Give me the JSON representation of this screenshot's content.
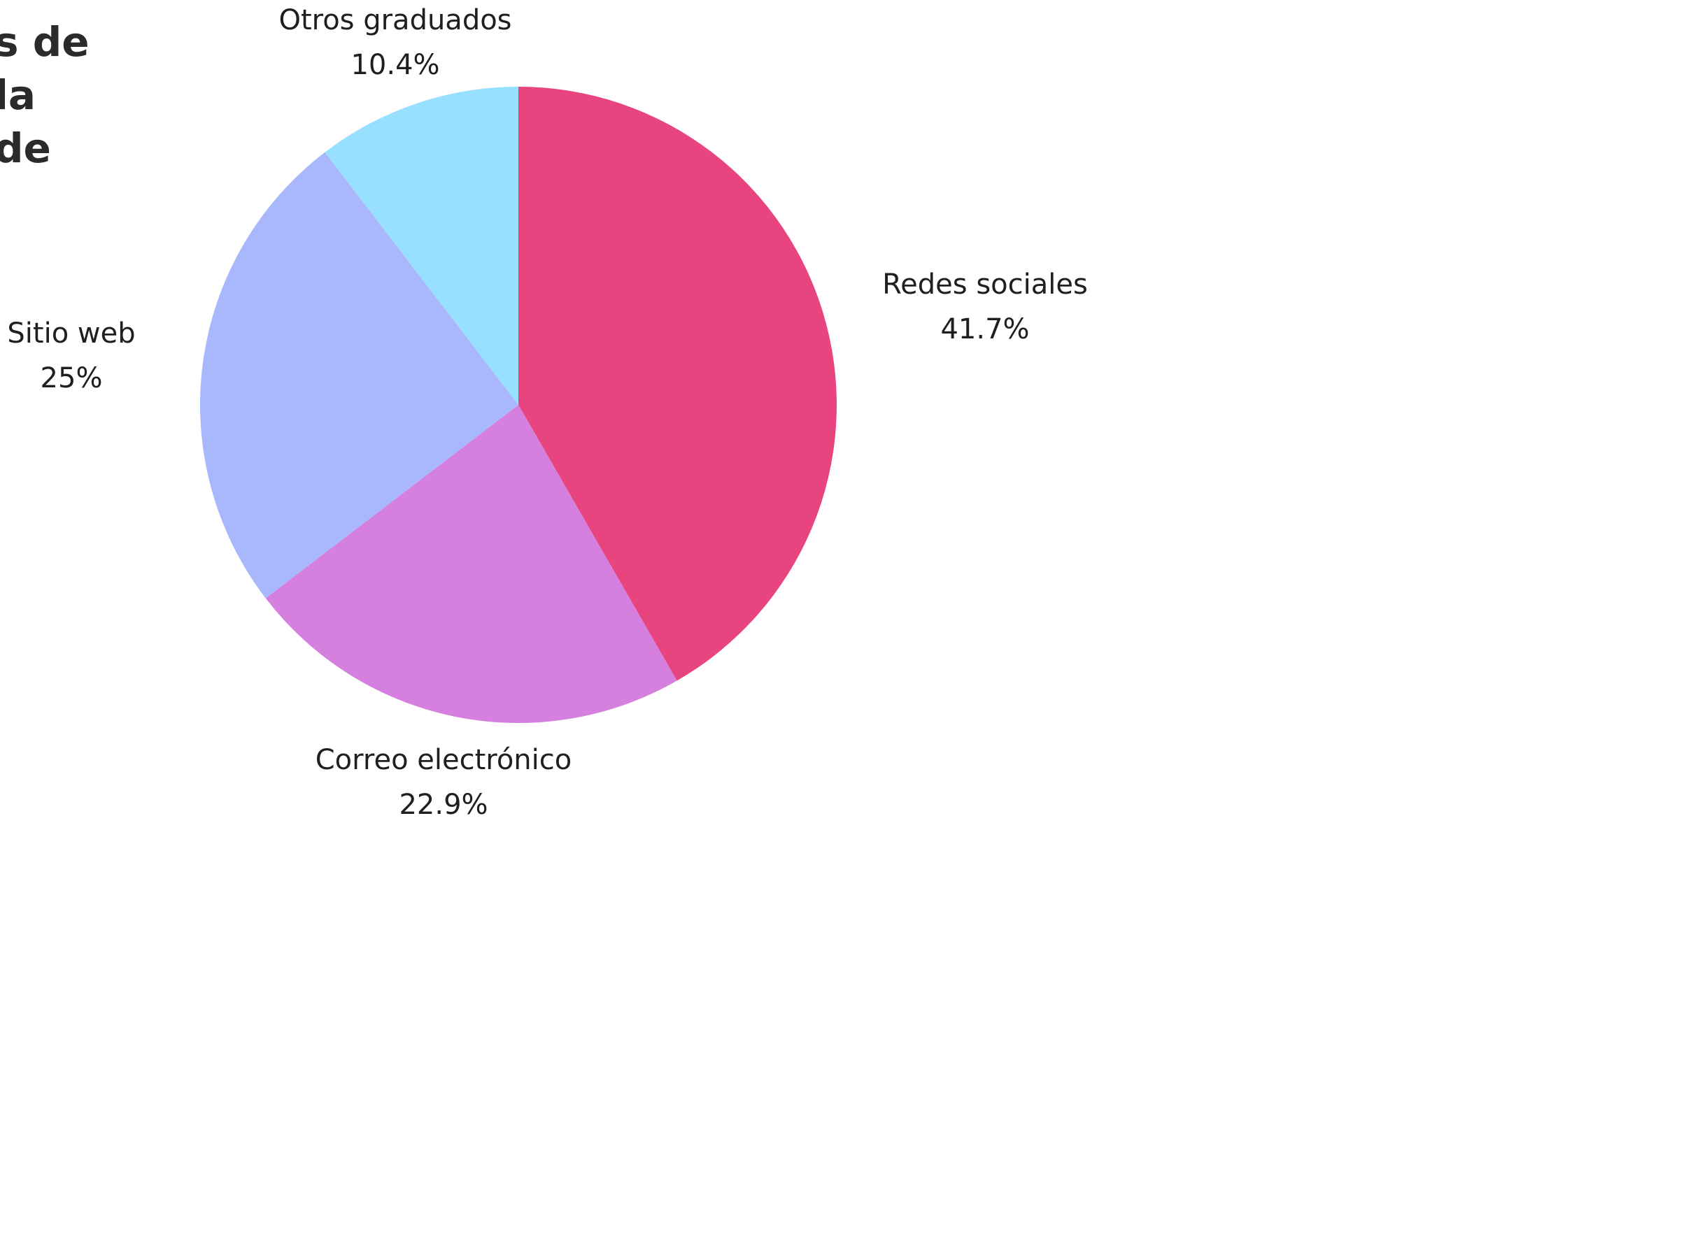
{
  "title_lines": [
    "s de",
    "la",
    "de"
  ],
  "chart_data": {
    "type": "pie",
    "start": "12 o'clock",
    "direction": "clockwise",
    "slices": [
      {
        "label": "Redes sociales",
        "value": 41.7,
        "display": "41.7%",
        "color": "#e84580"
      },
      {
        "label": "Correo electrónico",
        "value": 22.9,
        "display": "22.9%",
        "color": "#d580de"
      },
      {
        "label": "Sitio web",
        "value": 25,
        "display": "25%",
        "color": "#a9b7fc"
      },
      {
        "label": "Otros graduados",
        "value": 10.4,
        "display": "10.4%",
        "color": "#98e0ff"
      }
    ]
  }
}
